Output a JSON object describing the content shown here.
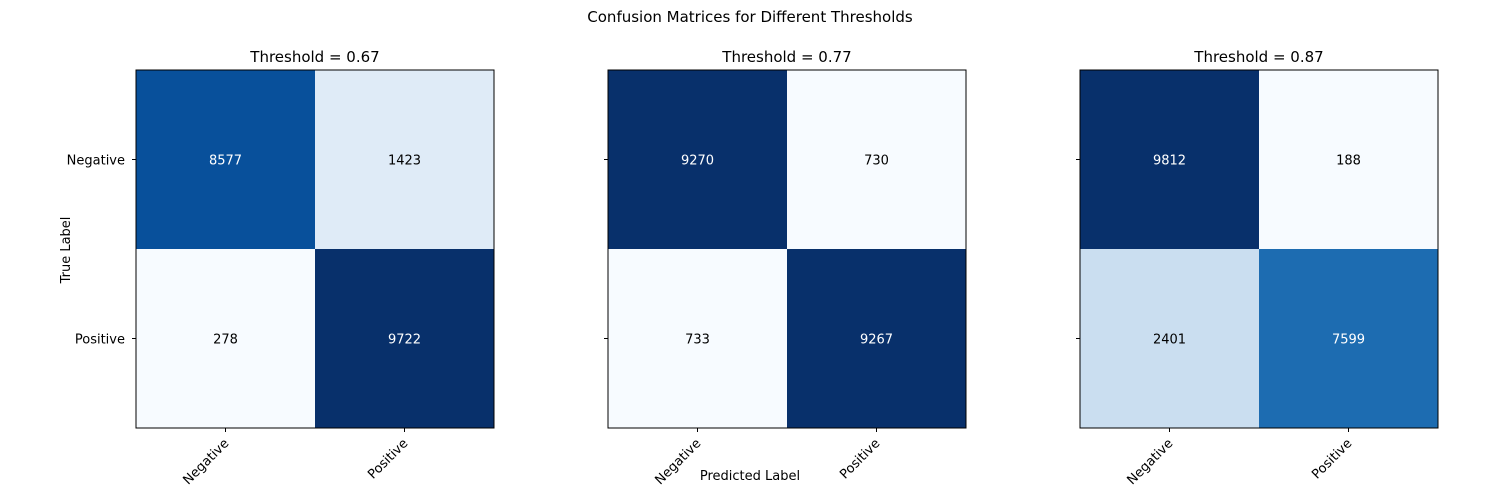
{
  "suptitle": "Confusion Matrices for Different Thresholds",
  "xlabel": "Predicted Label",
  "ylabel": "True Label",
  "colormap": "Blues",
  "chart_data": [
    {
      "type": "heatmap",
      "title": "Threshold = 0.67",
      "x_categories": [
        "Negative",
        "Positive"
      ],
      "y_categories": [
        "Negative",
        "Positive"
      ],
      "values": [
        [
          8577,
          1423
        ],
        [
          278,
          9722
        ]
      ]
    },
    {
      "type": "heatmap",
      "title": "Threshold = 0.77",
      "x_categories": [
        "Negative",
        "Positive"
      ],
      "y_categories": [
        "Negative",
        "Positive"
      ],
      "values": [
        [
          9270,
          730
        ],
        [
          733,
          9267
        ]
      ]
    },
    {
      "type": "heatmap",
      "title": "Threshold = 0.87",
      "x_categories": [
        "Negative",
        "Positive"
      ],
      "y_categories": [
        "Negative",
        "Positive"
      ],
      "values": [
        [
          9812,
          188
        ],
        [
          2401,
          7599
        ]
      ]
    }
  ]
}
